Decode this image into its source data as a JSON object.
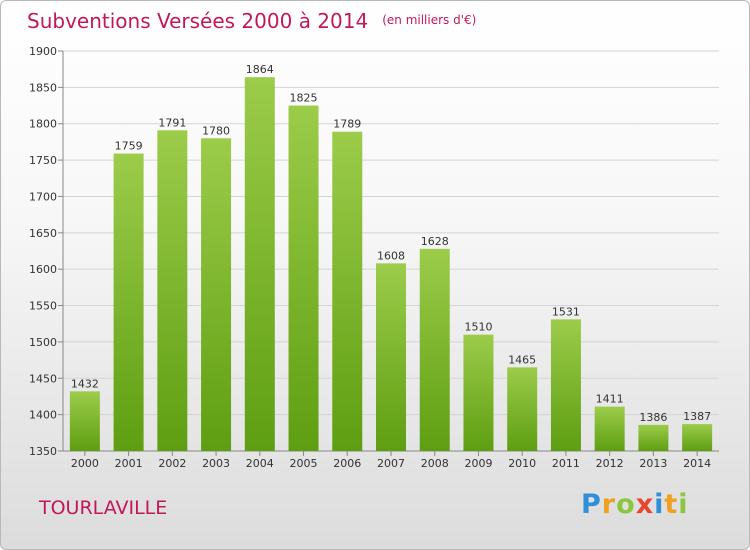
{
  "chart_data": {
    "type": "bar",
    "title": "Subventions Versées 2000 à 2014",
    "subtitle": "(en milliers d'€)",
    "categories": [
      "2000",
      "2001",
      "2002",
      "2003",
      "2004",
      "2005",
      "2006",
      "2007",
      "2008",
      "2009",
      "2010",
      "2011",
      "2012",
      "2013",
      "2014"
    ],
    "values": [
      1432,
      1759,
      1791,
      1780,
      1864,
      1825,
      1789,
      1608,
      1628,
      1510,
      1465,
      1531,
      1411,
      1386,
      1387
    ],
    "ylim": [
      1350,
      1900
    ],
    "yticks": [
      1350,
      1400,
      1450,
      1500,
      1550,
      1600,
      1650,
      1700,
      1750,
      1800,
      1850,
      1900
    ],
    "grid": true,
    "bar_color_top": "#9ccc4a",
    "bar_color_bottom": "#5e9e12",
    "xlabel": "",
    "ylabel": ""
  },
  "footer": {
    "commune": "TOURLAVILLE",
    "brand": [
      "P",
      "r",
      "o",
      "x",
      "i",
      "t",
      "i"
    ],
    "brand_colors": [
      "#2f8fd8",
      "#f0a020",
      "#8cc63f",
      "#e8452c",
      "#2f8fd8",
      "#f0a020",
      "#8cc63f"
    ]
  },
  "theme": {
    "accent": "#c2185b"
  }
}
